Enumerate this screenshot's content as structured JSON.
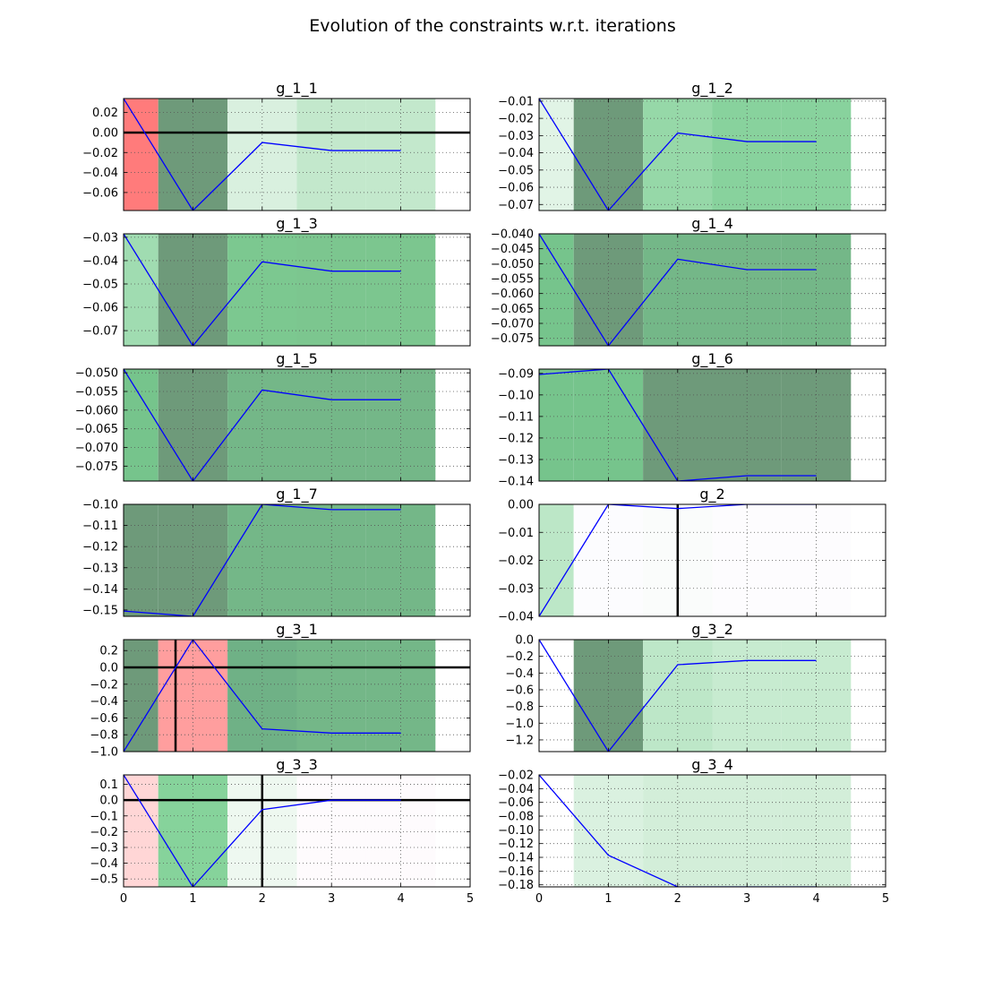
{
  "figure": {
    "title": "Evolution of the constraints w.r.t. iterations"
  },
  "style": {
    "line_color": "#0000ff",
    "zero_line_color": "#000000",
    "grid_color": "#555555"
  },
  "chart_data": [
    {
      "type": "line",
      "title": "g_1_1",
      "xlim": [
        0,
        5
      ],
      "ylim": [
        -0.078,
        0.034
      ],
      "yticks": [
        0.02,
        0.0,
        -0.02,
        -0.04,
        -0.06
      ],
      "ytick_labels": [
        "0.02",
        "0.00",
        "−0.02",
        "−0.04",
        "−0.06"
      ],
      "x": [
        0,
        1,
        2,
        3,
        4
      ],
      "y": [
        0.034,
        -0.078,
        -0.01,
        -0.018,
        -0.018
      ],
      "zero_line": true,
      "vline": null,
      "bands": [
        {
          "x0": -0.5,
          "x1": 0.5,
          "color": "#ff7b7b"
        },
        {
          "x0": 0.5,
          "x1": 1.5,
          "color": "#6e9a7a"
        },
        {
          "x0": 1.5,
          "x1": 2.5,
          "color": "#d9f0df"
        },
        {
          "x0": 2.5,
          "x1": 3.5,
          "color": "#c3e8cc"
        },
        {
          "x0": 3.5,
          "x1": 4.5,
          "color": "#c3e8cc"
        }
      ]
    },
    {
      "type": "line",
      "title": "g_1_2",
      "xlim": [
        0,
        5
      ],
      "ylim": [
        -0.0735,
        -0.0085
      ],
      "yticks": [
        -0.01,
        -0.02,
        -0.03,
        -0.04,
        -0.05,
        -0.06,
        -0.07
      ],
      "ytick_labels": [
        "−0.01",
        "−0.02",
        "−0.03",
        "−0.04",
        "−0.05",
        "−0.06",
        "−0.07"
      ],
      "x": [
        0,
        1,
        2,
        3,
        4
      ],
      "y": [
        -0.0085,
        -0.0735,
        -0.0285,
        -0.0335,
        -0.0335
      ],
      "zero_line": false,
      "vline": null,
      "bands": [
        {
          "x0": -0.5,
          "x1": 0.5,
          "color": "#e1f4e6"
        },
        {
          "x0": 0.5,
          "x1": 1.5,
          "color": "#6e9a7a"
        },
        {
          "x0": 1.5,
          "x1": 2.5,
          "color": "#96d8a8"
        },
        {
          "x0": 2.5,
          "x1": 3.5,
          "color": "#88d29d"
        },
        {
          "x0": 3.5,
          "x1": 4.5,
          "color": "#88d29d"
        }
      ]
    },
    {
      "type": "line",
      "title": "g_1_3",
      "xlim": [
        0,
        5
      ],
      "ylim": [
        -0.0765,
        -0.0285
      ],
      "yticks": [
        -0.03,
        -0.04,
        -0.05,
        -0.06,
        -0.07
      ],
      "ytick_labels": [
        "−0.03",
        "−0.04",
        "−0.05",
        "−0.06",
        "−0.07"
      ],
      "x": [
        0,
        1,
        2,
        3,
        4
      ],
      "y": [
        -0.0285,
        -0.0765,
        -0.0405,
        -0.0445,
        -0.0445
      ],
      "zero_line": false,
      "vline": null,
      "bands": [
        {
          "x0": -0.5,
          "x1": 0.5,
          "color": "#a0dcb1"
        },
        {
          "x0": 0.5,
          "x1": 1.5,
          "color": "#6e9a7a"
        },
        {
          "x0": 1.5,
          "x1": 2.5,
          "color": "#7cc890"
        },
        {
          "x0": 2.5,
          "x1": 3.5,
          "color": "#7cc68f"
        },
        {
          "x0": 3.5,
          "x1": 4.5,
          "color": "#7cc68f"
        }
      ]
    },
    {
      "type": "line",
      "title": "g_1_4",
      "xlim": [
        0,
        5
      ],
      "ylim": [
        -0.0775,
        -0.04
      ],
      "yticks": [
        -0.04,
        -0.045,
        -0.05,
        -0.055,
        -0.06,
        -0.065,
        -0.07,
        -0.075
      ],
      "ytick_labels": [
        "−0.040",
        "−0.045",
        "−0.050",
        "−0.055",
        "−0.060",
        "−0.065",
        "−0.070",
        "−0.075"
      ],
      "x": [
        0,
        1,
        2,
        3,
        4
      ],
      "y": [
        -0.04,
        -0.0775,
        -0.0485,
        -0.052,
        -0.052
      ],
      "zero_line": false,
      "vline": null,
      "bands": [
        {
          "x0": -0.5,
          "x1": 0.5,
          "color": "#76c48c"
        },
        {
          "x0": 0.5,
          "x1": 1.5,
          "color": "#6e9a7a"
        },
        {
          "x0": 1.5,
          "x1": 2.5,
          "color": "#74b788"
        },
        {
          "x0": 2.5,
          "x1": 3.5,
          "color": "#74b788"
        },
        {
          "x0": 3.5,
          "x1": 4.5,
          "color": "#74b788"
        }
      ]
    },
    {
      "type": "line",
      "title": "g_1_5",
      "xlim": [
        0,
        5
      ],
      "ylim": [
        -0.079,
        -0.049
      ],
      "yticks": [
        -0.05,
        -0.055,
        -0.06,
        -0.065,
        -0.07,
        -0.075
      ],
      "ytick_labels": [
        "−0.050",
        "−0.055",
        "−0.060",
        "−0.065",
        "−0.070",
        "−0.075"
      ],
      "x": [
        0,
        1,
        2,
        3,
        4
      ],
      "y": [
        -0.049,
        -0.079,
        -0.0546,
        -0.0572,
        -0.0572
      ],
      "zero_line": false,
      "vline": null,
      "bands": [
        {
          "x0": -0.5,
          "x1": 0.5,
          "color": "#76c48c"
        },
        {
          "x0": 0.5,
          "x1": 1.5,
          "color": "#6e9a7a"
        },
        {
          "x0": 1.5,
          "x1": 2.5,
          "color": "#74b788"
        },
        {
          "x0": 2.5,
          "x1": 3.5,
          "color": "#74b788"
        },
        {
          "x0": 3.5,
          "x1": 4.5,
          "color": "#74b788"
        }
      ]
    },
    {
      "type": "line",
      "title": "g_1_6",
      "xlim": [
        0,
        5
      ],
      "ylim": [
        -0.14,
        -0.088
      ],
      "yticks": [
        -0.09,
        -0.1,
        -0.11,
        -0.12,
        -0.13,
        -0.14
      ],
      "ytick_labels": [
        "−0.09",
        "−0.10",
        "−0.11",
        "−0.12",
        "−0.13",
        "−0.14"
      ],
      "x": [
        0,
        1,
        2,
        3,
        4
      ],
      "y": [
        -0.0905,
        -0.088,
        -0.14,
        -0.1375,
        -0.1375
      ],
      "zero_line": false,
      "vline": null,
      "bands": [
        {
          "x0": -0.5,
          "x1": 0.5,
          "color": "#76c48c"
        },
        {
          "x0": 0.5,
          "x1": 1.5,
          "color": "#76c48c"
        },
        {
          "x0": 1.5,
          "x1": 2.5,
          "color": "#6e9a7a"
        },
        {
          "x0": 2.5,
          "x1": 3.5,
          "color": "#6e9a7a"
        },
        {
          "x0": 3.5,
          "x1": 4.5,
          "color": "#6e9a7a"
        }
      ]
    },
    {
      "type": "line",
      "title": "g_1_7",
      "xlim": [
        0,
        5
      ],
      "ylim": [
        -0.153,
        -0.1
      ],
      "yticks": [
        -0.1,
        -0.11,
        -0.12,
        -0.13,
        -0.14,
        -0.15
      ],
      "ytick_labels": [
        "−0.10",
        "−0.11",
        "−0.12",
        "−0.13",
        "−0.14",
        "−0.15"
      ],
      "x": [
        0,
        1,
        2,
        3,
        4
      ],
      "y": [
        -0.1505,
        -0.153,
        -0.1,
        -0.1025,
        -0.1025
      ],
      "zero_line": false,
      "vline": null,
      "bands": [
        {
          "x0": -0.5,
          "x1": 0.5,
          "color": "#6e9a7a"
        },
        {
          "x0": 0.5,
          "x1": 1.5,
          "color": "#6e9a7a"
        },
        {
          "x0": 1.5,
          "x1": 2.5,
          "color": "#74b788"
        },
        {
          "x0": 2.5,
          "x1": 3.5,
          "color": "#74b788"
        },
        {
          "x0": 3.5,
          "x1": 4.5,
          "color": "#74b788"
        }
      ]
    },
    {
      "type": "line",
      "title": "g_2",
      "xlim": [
        0,
        5
      ],
      "ylim": [
        -0.04,
        0.0
      ],
      "yticks": [
        0.0,
        -0.01,
        -0.02,
        -0.03,
        -0.04
      ],
      "ytick_labels": [
        "0.00",
        "−0.01",
        "−0.02",
        "−0.03",
        "−0.04"
      ],
      "x": [
        0,
        1,
        2,
        3,
        4
      ],
      "y": [
        -0.04,
        0.0,
        -0.0015,
        0.0,
        0.0
      ],
      "zero_line": false,
      "vline": 2.0,
      "bands": [
        {
          "x0": -0.5,
          "x1": 0.5,
          "color": "#bce7c7"
        },
        {
          "x0": 0.5,
          "x1": 1.5,
          "color": "#fcfcfe"
        },
        {
          "x0": 1.5,
          "x1": 2.5,
          "color": "#fafcfb"
        },
        {
          "x0": 2.5,
          "x1": 3.5,
          "color": "#fdfcfe"
        },
        {
          "x0": 3.5,
          "x1": 4.5,
          "color": "#fdfcfe"
        }
      ]
    },
    {
      "type": "line",
      "title": "g_3_1",
      "xlim": [
        0,
        5
      ],
      "ylim": [
        -1.0,
        0.33
      ],
      "yticks": [
        0.2,
        0.0,
        -0.2,
        -0.4,
        -0.6,
        -0.8,
        -1.0
      ],
      "ytick_labels": [
        "0.2",
        "0.0",
        "−0.2",
        "−0.4",
        "−0.6",
        "−0.8",
        "−1.0"
      ],
      "x": [
        0,
        1,
        2,
        3,
        4
      ],
      "y": [
        -1.0,
        0.33,
        -0.73,
        -0.78,
        -0.78
      ],
      "zero_line": true,
      "vline": 0.75,
      "bands": [
        {
          "x0": -0.5,
          "x1": 0.5,
          "color": "#6e9a7a"
        },
        {
          "x0": 0.5,
          "x1": 1.5,
          "color": "#ff9e9e"
        },
        {
          "x0": 1.5,
          "x1": 2.5,
          "color": "#6fb186"
        },
        {
          "x0": 2.5,
          "x1": 3.5,
          "color": "#74b788"
        },
        {
          "x0": 3.5,
          "x1": 4.5,
          "color": "#74b788"
        }
      ]
    },
    {
      "type": "line",
      "title": "g_3_2",
      "xlim": [
        0,
        5
      ],
      "ylim": [
        -1.34,
        0.0
      ],
      "yticks": [
        0.0,
        -0.2,
        -0.4,
        -0.6,
        -0.8,
        -1.0,
        -1.2
      ],
      "ytick_labels": [
        "0.0",
        "−0.2",
        "−0.4",
        "−0.6",
        "−0.8",
        "−1.0",
        "−1.2"
      ],
      "x": [
        0,
        1,
        2,
        3,
        4
      ],
      "y": [
        0.0,
        -1.34,
        -0.3,
        -0.25,
        -0.25
      ],
      "zero_line": false,
      "vline": null,
      "bands": [
        {
          "x0": -0.5,
          "x1": 0.5,
          "color": "#ffffff"
        },
        {
          "x0": 0.5,
          "x1": 1.5,
          "color": "#6e9a7a"
        },
        {
          "x0": 1.5,
          "x1": 2.5,
          "color": "#bde7c8"
        },
        {
          "x0": 2.5,
          "x1": 3.5,
          "color": "#c7ebd0"
        },
        {
          "x0": 3.5,
          "x1": 4.5,
          "color": "#c7ebd0"
        }
      ]
    },
    {
      "type": "line",
      "title": "g_3_3",
      "xlim": [
        0,
        5
      ],
      "ylim": [
        -0.55,
        0.16
      ],
      "yticks": [
        0.1,
        0.0,
        -0.1,
        -0.2,
        -0.3,
        -0.4,
        -0.5
      ],
      "ytick_labels": [
        "0.1",
        "0.0",
        "−0.1",
        "−0.2",
        "−0.3",
        "−0.4",
        "−0.5"
      ],
      "xticks": [
        0,
        1,
        2,
        3,
        4,
        5
      ],
      "xtick_labels": [
        "0",
        "1",
        "2",
        "3",
        "4",
        "5"
      ],
      "x": [
        0,
        1,
        2,
        3,
        4
      ],
      "y": [
        0.16,
        -0.55,
        -0.06,
        0.0,
        0.0
      ],
      "zero_line": true,
      "vline": 2.0,
      "bands": [
        {
          "x0": -0.5,
          "x1": 0.5,
          "color": "#ffd6d6"
        },
        {
          "x0": 0.5,
          "x1": 1.5,
          "color": "#86d39b"
        },
        {
          "x0": 1.5,
          "x1": 2.5,
          "color": "#eef8f0"
        },
        {
          "x0": 2.5,
          "x1": 3.5,
          "color": "#fefbfd"
        },
        {
          "x0": 3.5,
          "x1": 4.5,
          "color": "#fefbfd"
        }
      ]
    },
    {
      "type": "line",
      "title": "g_3_4",
      "xlim": [
        0,
        5
      ],
      "ylim": [
        -0.183,
        -0.02
      ],
      "yticks": [
        -0.02,
        -0.04,
        -0.06,
        -0.08,
        -0.1,
        -0.12,
        -0.14,
        -0.16,
        -0.18
      ],
      "ytick_labels": [
        "−0.02",
        "−0.04",
        "−0.06",
        "−0.08",
        "−0.10",
        "−0.12",
        "−0.14",
        "−0.16",
        "−0.18"
      ],
      "xticks": [
        0,
        1,
        2,
        3,
        4,
        5
      ],
      "xtick_labels": [
        "0",
        "1",
        "2",
        "3",
        "4",
        "5"
      ],
      "x": [
        0,
        1,
        2,
        3,
        4
      ],
      "y": [
        -0.02,
        -0.137,
        -0.183,
        -0.183,
        -0.183
      ],
      "zero_line": false,
      "vline": null,
      "bands": [
        {
          "x0": -0.5,
          "x1": 0.5,
          "color": "#ffffff"
        },
        {
          "x0": 0.5,
          "x1": 1.5,
          "color": "#daf1e0"
        },
        {
          "x0": 1.5,
          "x1": 2.5,
          "color": "#d3eed9"
        },
        {
          "x0": 2.5,
          "x1": 3.5,
          "color": "#d3eed9"
        },
        {
          "x0": 3.5,
          "x1": 4.5,
          "color": "#d3eed9"
        }
      ]
    }
  ]
}
